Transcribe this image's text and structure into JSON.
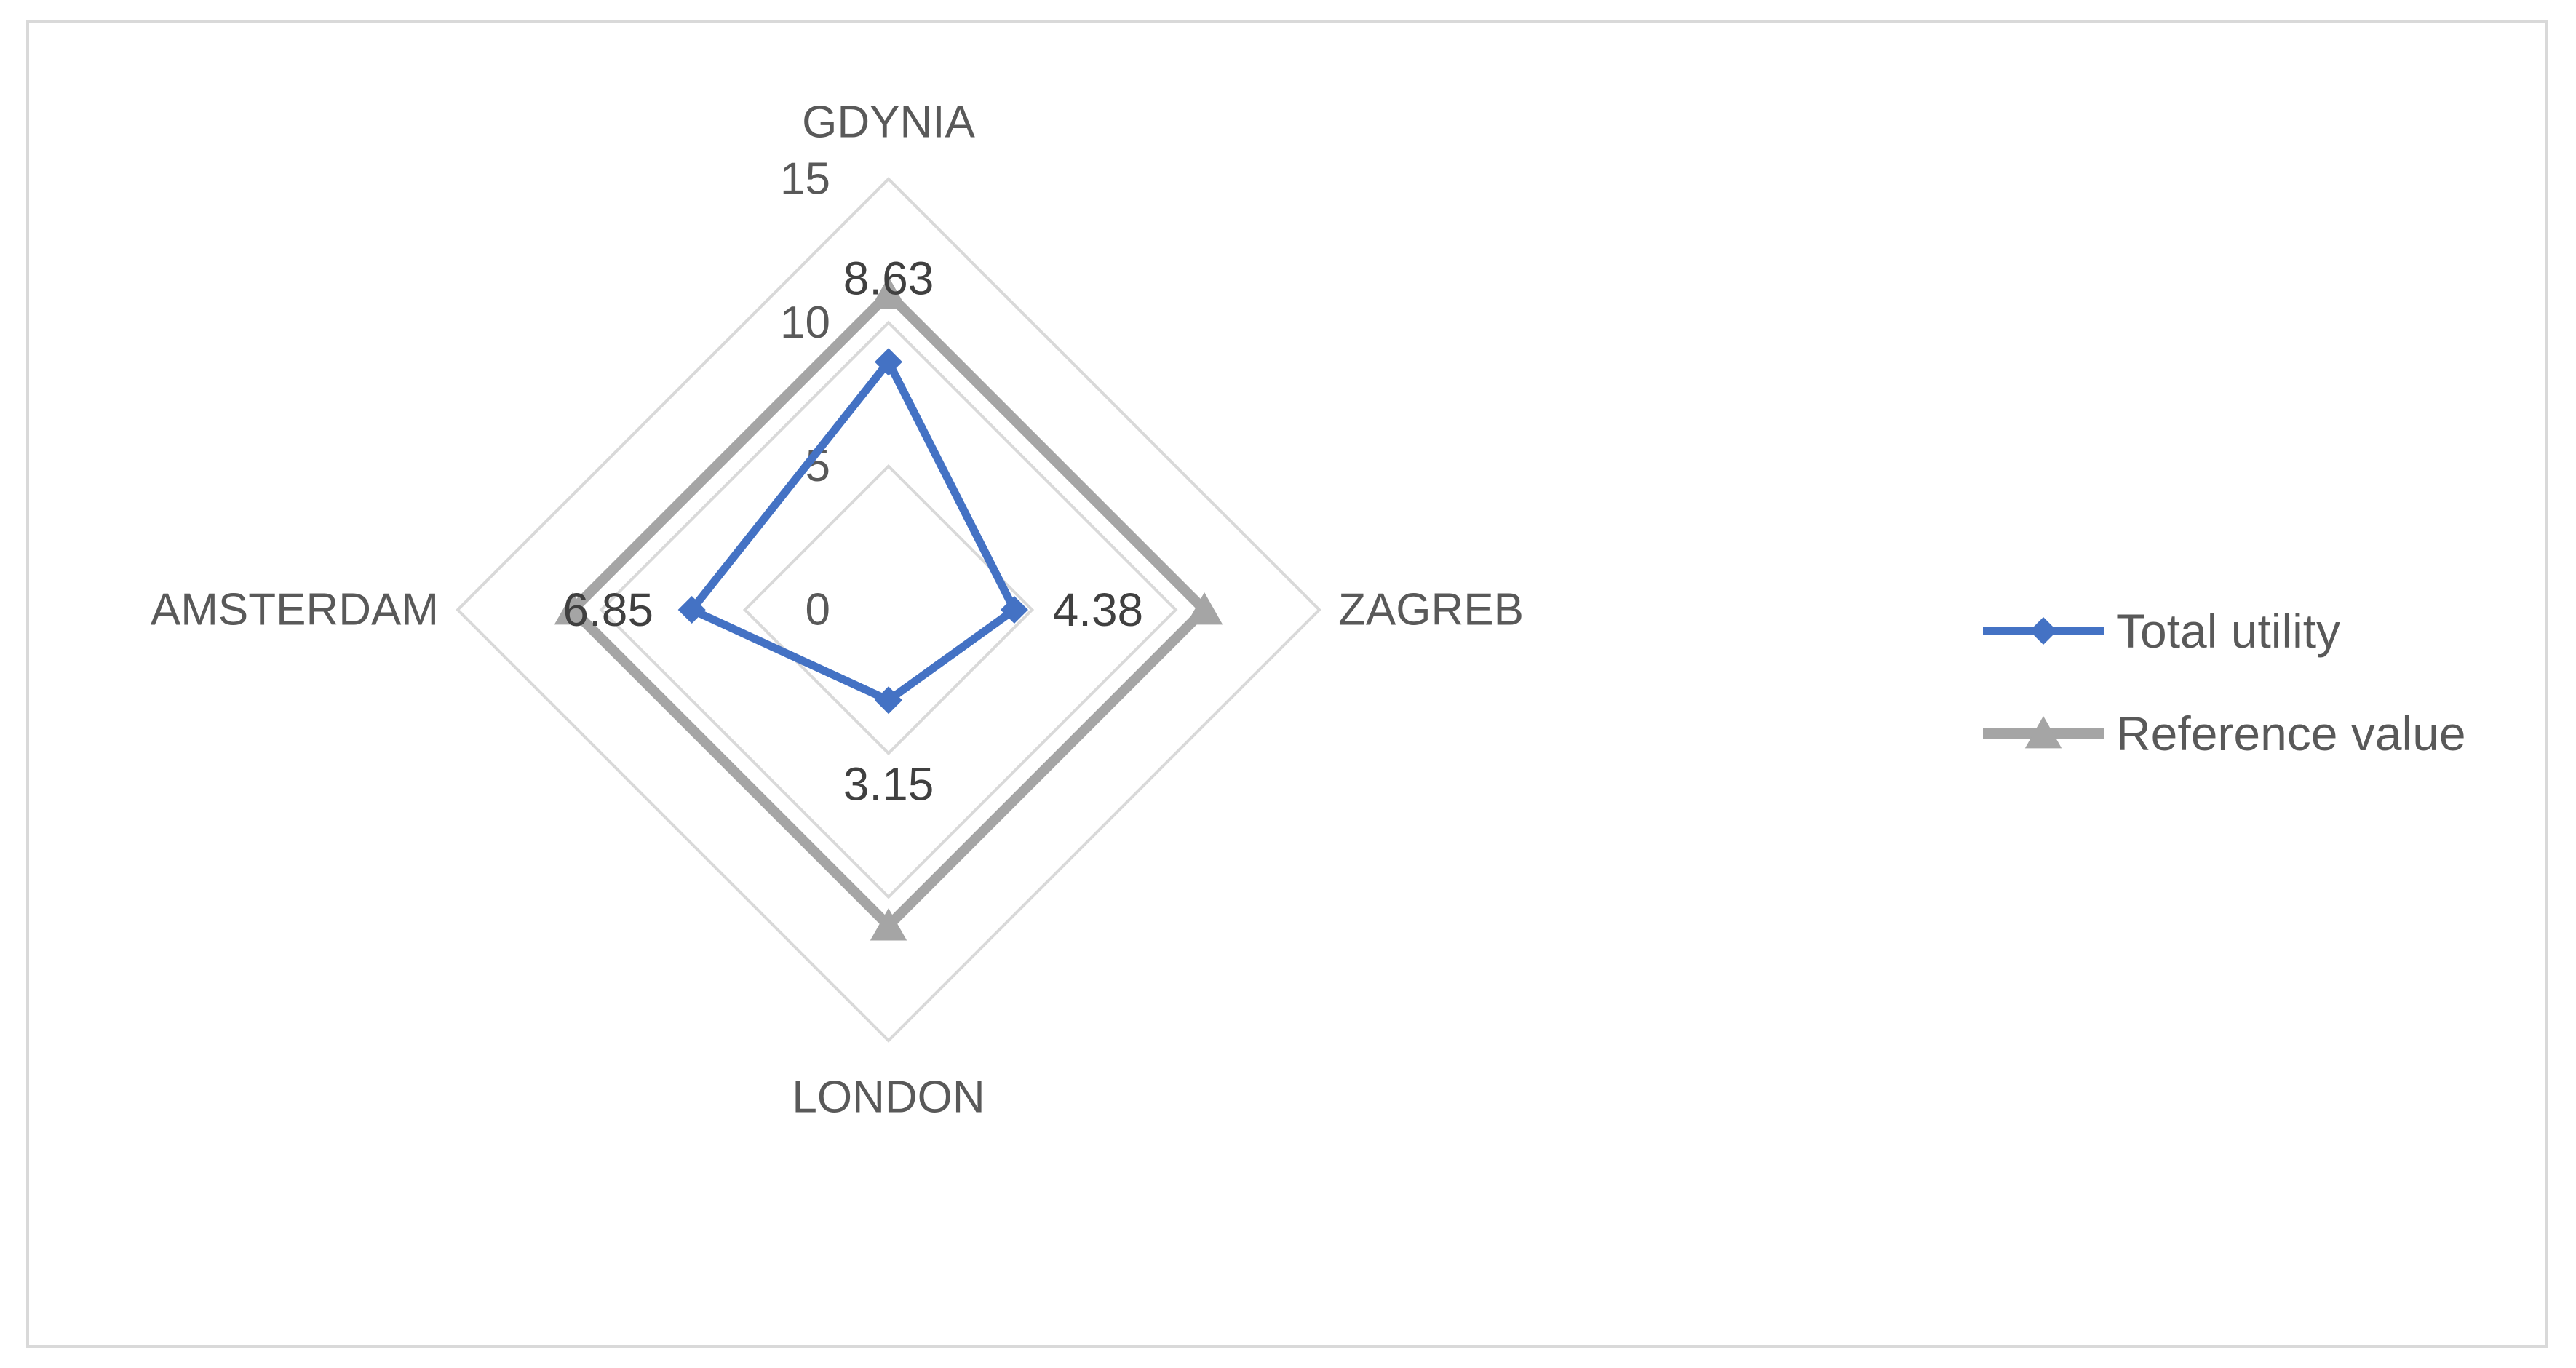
{
  "chart_data": {
    "type": "radar",
    "categories": [
      "GDYNIA",
      "ZAGREB",
      "LONDON",
      "AMSTERDAM"
    ],
    "series": [
      {
        "name": "Total utility",
        "values": [
          8.63,
          4.38,
          3.15,
          6.85
        ],
        "color": "#4472c4",
        "marker": "diamond",
        "data_labels": true
      },
      {
        "name": "Reference value",
        "values": [
          11,
          11,
          11,
          11
        ],
        "color": "#a5a5a5",
        "marker": "triangle",
        "data_labels": false
      }
    ],
    "rlim": [
      0,
      15
    ],
    "rticks": [
      0,
      5,
      10,
      15
    ],
    "grid": true,
    "grid_color": "#d9d9d9",
    "legend": "right"
  }
}
